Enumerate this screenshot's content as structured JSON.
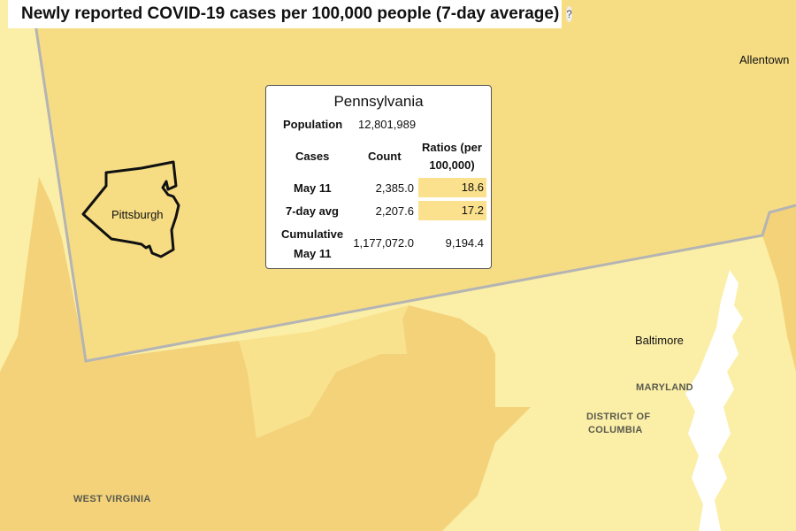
{
  "header": {
    "title": "Newly reported COVID-19 cases per 100,000 people (7-day average)",
    "help_icon": "?"
  },
  "colors": {
    "level_low": "#fbeea6",
    "level_mid": "#f9e08c",
    "level_high": "#f3d27a",
    "state_border": "#b4b4b4",
    "highlight_outline": "#111111",
    "water": "#ffffff",
    "tooltip_highlight": "#fbe18d"
  },
  "labels": {
    "cities": [
      "Allentown",
      "Pittsburgh",
      "Baltimore"
    ],
    "regions": [
      "MARYLAND",
      "DISTRICT OF",
      "COLUMBIA",
      "WEST VIRGINIA"
    ]
  },
  "tooltip": {
    "state": "Pennsylvania",
    "population_label": "Population",
    "population_value": "12,801,989",
    "header_cases": "Cases",
    "header_count": "Count",
    "header_ratio_1": "Ratios (per",
    "header_ratio_2": "100,000)",
    "rows": [
      {
        "label": "May 11",
        "count": "2,385.0",
        "ratio": "18.6"
      },
      {
        "label": "7-day avg",
        "count": "2,207.6",
        "ratio": "17.2"
      }
    ],
    "cumulative_label_1": "Cumulative",
    "cumulative_label_2": "May 11",
    "cumulative_count": "1,177,072.0",
    "cumulative_ratio": "9,194.4"
  }
}
